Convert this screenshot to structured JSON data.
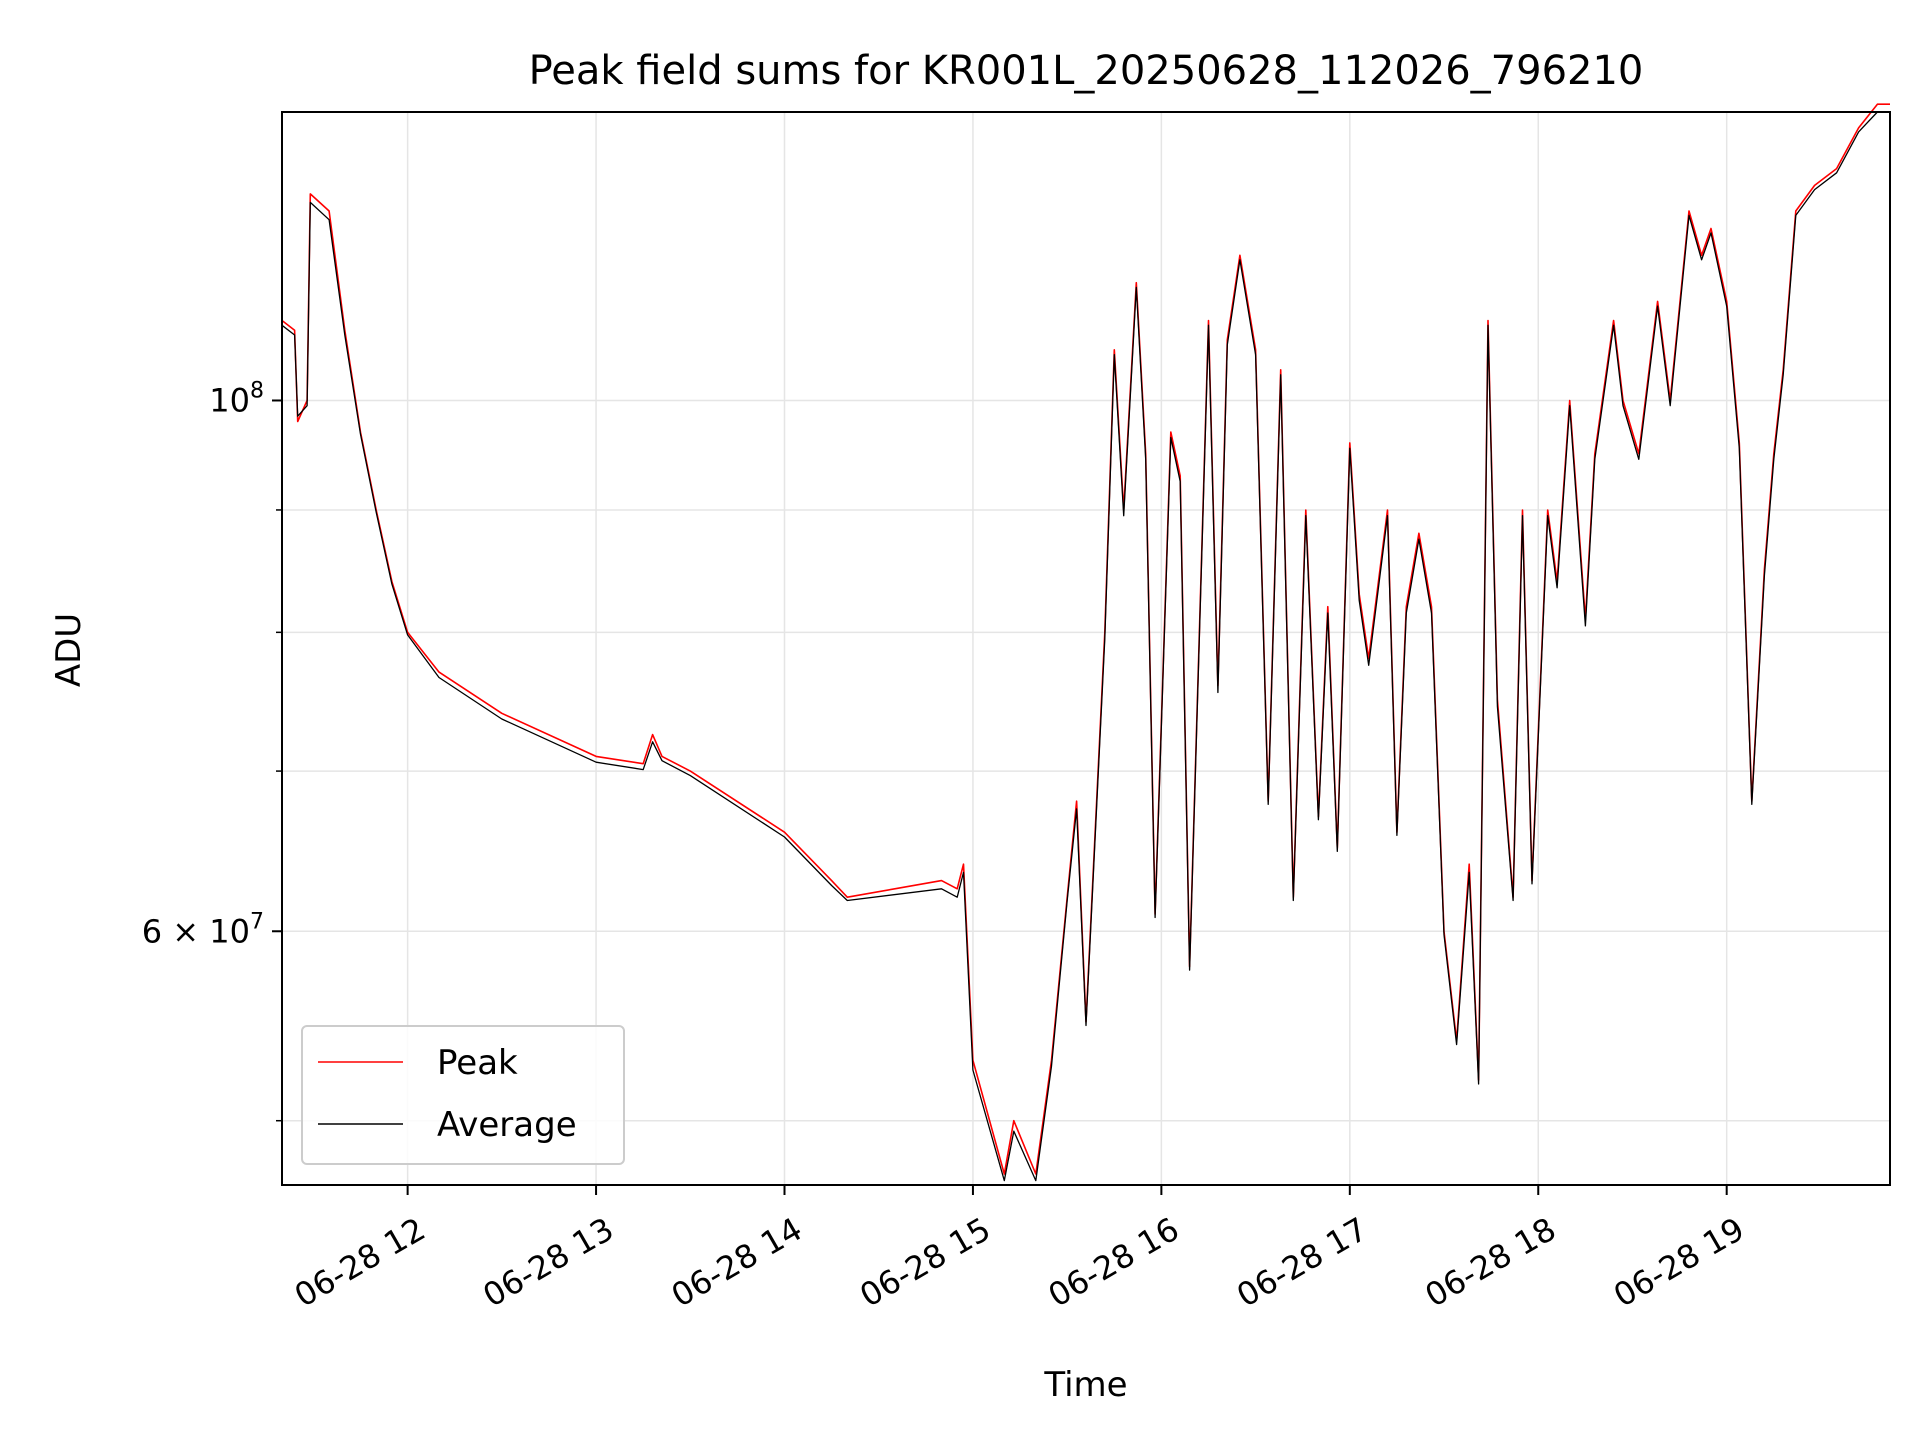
{
  "chart_data": {
    "type": "line",
    "title": "Peak field sums for KR001L_20250628_112026_796210",
    "xlabel": "Time",
    "ylabel": "ADU",
    "y_scale": "log",
    "ylim": [
      47000000,
      132000000
    ],
    "xlim": [
      "2025-06-28 11:20",
      "2025-06-28 19:52"
    ],
    "x_ticks": [
      "2025-06-28 12:00",
      "2025-06-28 13:00",
      "2025-06-28 14:00",
      "2025-06-28 15:00",
      "2025-06-28 16:00",
      "2025-06-28 17:00",
      "2025-06-28 18:00",
      "2025-06-28 19:00"
    ],
    "x_tick_labels": [
      "06-28 12",
      "06-28 13",
      "06-28 14",
      "06-28 15",
      "06-28 16",
      "06-28 17",
      "06-28 18",
      "06-28 19"
    ],
    "y_tick_labels": [
      {
        "value": 100000000,
        "base": "10",
        "exp": "8"
      },
      {
        "value": 60000000,
        "base": "6 × 10",
        "exp": "7"
      }
    ],
    "grid": true,
    "legend": {
      "position": "bottom-left"
    },
    "series": [
      {
        "name": "Peak",
        "color": "#ff0000",
        "x": [
          "2025-06-28 11:20",
          "2025-06-28 11:24",
          "2025-06-28 11:25",
          "2025-06-28 11:28",
          "2025-06-28 11:29",
          "2025-06-28 11:35",
          "2025-06-28 11:40",
          "2025-06-28 11:45",
          "2025-06-28 11:50",
          "2025-06-28 11:55",
          "2025-06-28 12:00",
          "2025-06-28 12:10",
          "2025-06-28 12:30",
          "2025-06-28 13:00",
          "2025-06-28 13:15",
          "2025-06-28 13:18",
          "2025-06-28 13:21",
          "2025-06-28 13:30",
          "2025-06-28 14:00",
          "2025-06-28 14:15",
          "2025-06-28 14:20",
          "2025-06-28 14:50",
          "2025-06-28 14:55",
          "2025-06-28 14:57",
          "2025-06-28 15:00",
          "2025-06-28 15:10",
          "2025-06-28 15:13",
          "2025-06-28 15:20",
          "2025-06-28 15:25",
          "2025-06-28 15:30",
          "2025-06-28 15:33",
          "2025-06-28 15:36",
          "2025-06-28 15:42",
          "2025-06-28 15:45",
          "2025-06-28 15:48",
          "2025-06-28 15:52",
          "2025-06-28 15:55",
          "2025-06-28 15:58",
          "2025-06-28 16:03",
          "2025-06-28 16:06",
          "2025-06-28 16:09",
          "2025-06-28 16:15",
          "2025-06-28 16:18",
          "2025-06-28 16:21",
          "2025-06-28 16:25",
          "2025-06-28 16:30",
          "2025-06-28 16:34",
          "2025-06-28 16:38",
          "2025-06-28 16:42",
          "2025-06-28 16:46",
          "2025-06-28 16:50",
          "2025-06-28 16:53",
          "2025-06-28 16:56",
          "2025-06-28 17:00",
          "2025-06-28 17:03",
          "2025-06-28 17:06",
          "2025-06-28 17:12",
          "2025-06-28 17:15",
          "2025-06-28 17:18",
          "2025-06-28 17:22",
          "2025-06-28 17:26",
          "2025-06-28 17:30",
          "2025-06-28 17:34",
          "2025-06-28 17:38",
          "2025-06-28 17:41",
          "2025-06-28 17:44",
          "2025-06-28 17:47",
          "2025-06-28 17:52",
          "2025-06-28 17:55",
          "2025-06-28 17:58",
          "2025-06-28 18:03",
          "2025-06-28 18:06",
          "2025-06-28 18:10",
          "2025-06-28 18:15",
          "2025-06-28 18:18",
          "2025-06-28 18:24",
          "2025-06-28 18:27",
          "2025-06-28 18:32",
          "2025-06-28 18:38",
          "2025-06-28 18:42",
          "2025-06-28 18:48",
          "2025-06-28 18:52",
          "2025-06-28 18:55",
          "2025-06-28 19:00",
          "2025-06-28 19:04",
          "2025-06-28 19:08",
          "2025-06-28 19:12",
          "2025-06-28 19:15",
          "2025-06-28 19:18",
          "2025-06-28 19:22",
          "2025-06-28 19:28",
          "2025-06-28 19:35",
          "2025-06-28 19:42",
          "2025-06-28 19:48",
          "2025-06-28 19:52"
        ],
        "y": [
          108000000,
          107000000,
          98000000,
          100000000,
          122000000,
          120000000,
          107000000,
          97000000,
          90000000,
          84000000,
          80000000,
          77000000,
          74000000,
          71000000,
          70500000,
          72500000,
          71000000,
          70000000,
          66000000,
          63000000,
          62000000,
          63000000,
          62500000,
          64000000,
          53000000,
          47500000,
          50000000,
          47500000,
          53000000,
          62000000,
          68000000,
          55000000,
          80000000,
          105000000,
          90000000,
          112000000,
          95000000,
          61000000,
          97000000,
          93000000,
          58000000,
          108000000,
          76000000,
          106000000,
          115000000,
          105000000,
          68000000,
          103000000,
          62000000,
          90000000,
          67000000,
          82000000,
          65000000,
          96000000,
          83000000,
          78000000,
          90000000,
          66000000,
          82000000,
          88000000,
          82000000,
          60000000,
          54000000,
          64000000,
          52000000,
          108000000,
          75000000,
          62000000,
          90000000,
          63000000,
          90000000,
          84000000,
          100000000,
          81000000,
          95000000,
          108000000,
          100000000,
          95000000,
          110000000,
          100000000,
          120000000,
          115000000,
          118000000,
          110000000,
          96000000,
          68000000,
          85000000,
          95000000,
          103000000,
          120000000,
          123000000,
          125000000,
          130000000,
          133000000,
          133000000
        ]
      },
      {
        "name": "Average",
        "color": "#000000",
        "x": [
          "2025-06-28 11:20",
          "2025-06-28 11:24",
          "2025-06-28 11:25",
          "2025-06-28 11:28",
          "2025-06-28 11:29",
          "2025-06-28 11:35",
          "2025-06-28 11:40",
          "2025-06-28 11:45",
          "2025-06-28 11:50",
          "2025-06-28 11:55",
          "2025-06-28 12:00",
          "2025-06-28 12:10",
          "2025-06-28 12:30",
          "2025-06-28 13:00",
          "2025-06-28 13:15",
          "2025-06-28 13:18",
          "2025-06-28 13:21",
          "2025-06-28 13:30",
          "2025-06-28 14:00",
          "2025-06-28 14:15",
          "2025-06-28 14:20",
          "2025-06-28 14:50",
          "2025-06-28 14:55",
          "2025-06-28 14:57",
          "2025-06-28 15:00",
          "2025-06-28 15:10",
          "2025-06-28 15:13",
          "2025-06-28 15:20",
          "2025-06-28 15:25",
          "2025-06-28 15:30",
          "2025-06-28 15:33",
          "2025-06-28 15:36",
          "2025-06-28 15:42",
          "2025-06-28 15:45",
          "2025-06-28 15:48",
          "2025-06-28 15:52",
          "2025-06-28 15:55",
          "2025-06-28 15:58",
          "2025-06-28 16:03",
          "2025-06-28 16:06",
          "2025-06-28 16:09",
          "2025-06-28 16:15",
          "2025-06-28 16:18",
          "2025-06-28 16:21",
          "2025-06-28 16:25",
          "2025-06-28 16:30",
          "2025-06-28 16:34",
          "2025-06-28 16:38",
          "2025-06-28 16:42",
          "2025-06-28 16:46",
          "2025-06-28 16:50",
          "2025-06-28 16:53",
          "2025-06-28 16:56",
          "2025-06-28 17:00",
          "2025-06-28 17:03",
          "2025-06-28 17:06",
          "2025-06-28 17:12",
          "2025-06-28 17:15",
          "2025-06-28 17:18",
          "2025-06-28 17:22",
          "2025-06-28 17:26",
          "2025-06-28 17:30",
          "2025-06-28 17:34",
          "2025-06-28 17:38",
          "2025-06-28 17:41",
          "2025-06-28 17:44",
          "2025-06-28 17:47",
          "2025-06-28 17:52",
          "2025-06-28 17:55",
          "2025-06-28 17:58",
          "2025-06-28 18:03",
          "2025-06-28 18:06",
          "2025-06-28 18:10",
          "2025-06-28 18:15",
          "2025-06-28 18:18",
          "2025-06-28 18:24",
          "2025-06-28 18:27",
          "2025-06-28 18:32",
          "2025-06-28 18:38",
          "2025-06-28 18:42",
          "2025-06-28 18:48",
          "2025-06-28 18:52",
          "2025-06-28 18:55",
          "2025-06-28 19:00",
          "2025-06-28 19:04",
          "2025-06-28 19:08",
          "2025-06-28 19:12",
          "2025-06-28 19:15",
          "2025-06-28 19:18",
          "2025-06-28 19:22",
          "2025-06-28 19:28",
          "2025-06-28 19:35",
          "2025-06-28 19:42",
          "2025-06-28 19:48",
          "2025-06-28 19:52"
        ],
        "y": [
          107500000,
          106500000,
          98500000,
          99500000,
          121000000,
          119000000,
          106500000,
          96800000,
          89800000,
          83800000,
          79800000,
          76600000,
          73600000,
          70600000,
          70100000,
          72000000,
          70700000,
          69700000,
          65700000,
          62700000,
          61800000,
          62500000,
          62000000,
          63500000,
          52500000,
          47200000,
          49500000,
          47200000,
          52700000,
          61800000,
          67500000,
          54800000,
          79500000,
          104500000,
          89500000,
          111500000,
          94500000,
          60800000,
          96500000,
          92500000,
          57800000,
          107500000,
          75500000,
          105500000,
          114500000,
          104500000,
          67800000,
          102500000,
          61800000,
          89500000,
          66800000,
          81500000,
          64800000,
          95500000,
          82500000,
          77500000,
          89500000,
          65800000,
          81500000,
          87500000,
          81500000,
          59800000,
          53800000,
          63500000,
          51800000,
          107500000,
          74500000,
          61800000,
          89500000,
          62800000,
          89500000,
          83500000,
          99500000,
          80500000,
          94500000,
          107500000,
          99500000,
          94500000,
          109500000,
          99500000,
          119500000,
          114500000,
          117500000,
          109500000,
          95500000,
          67800000,
          84500000,
          94500000,
          102500000,
          119500000,
          122500000,
          124500000,
          129500000,
          132000000,
          132000000
        ]
      }
    ]
  }
}
